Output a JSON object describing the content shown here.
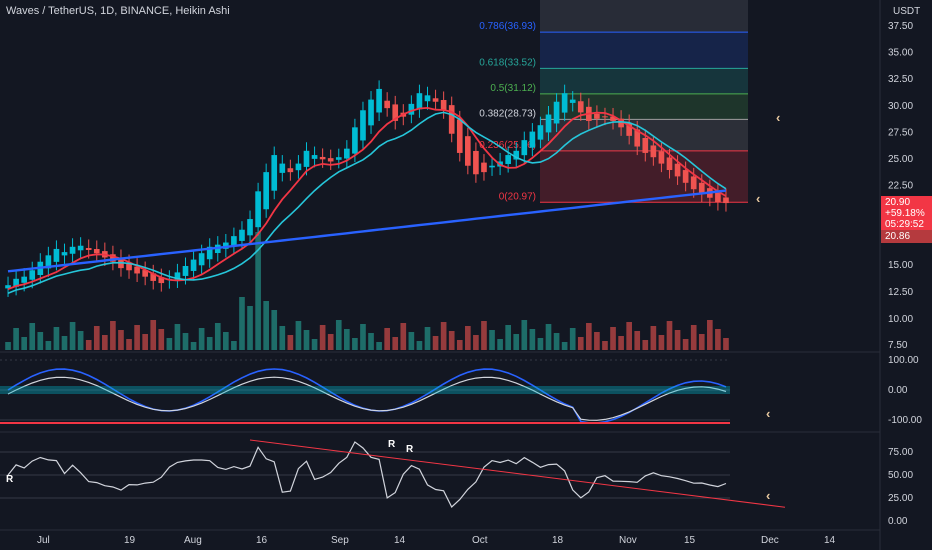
{
  "header": {
    "title": "Waves / TetherUS, 1D, BINANCE, Heikin Ashi",
    "quote_unit": "USDT"
  },
  "price_tags": {
    "last_price": "20.90",
    "change_pct": "+59.18%",
    "countdown": "05:29:52",
    "secondary": "20.86"
  },
  "colors": {
    "background": "#131722",
    "up": "#26a69a",
    "down": "#ef5350",
    "cyan": "#00bcd4",
    "blue_ma": "#2962ff",
    "red_ma": "#f23645",
    "accent_arrow": "#e8c9a0"
  },
  "chart_data": [
    {
      "type": "candlestick",
      "style": "Heikin Ashi",
      "y_axis": {
        "range": [
          6.5,
          40
        ],
        "ticks": [
          "37.50",
          "35.00",
          "32.50",
          "30.00",
          "27.50",
          "25.00",
          "22.50",
          "15.00",
          "12.50",
          "10.00",
          "7.50"
        ]
      },
      "x_axis": {
        "ticks": [
          "Jul",
          "19",
          "Aug",
          "16",
          "Sep",
          "14",
          "Oct",
          "18",
          "Nov",
          "15",
          "Dec",
          "14"
        ]
      },
      "fibonacci": [
        {
          "label": "0.786(36.93)",
          "value": 36.93,
          "color": "#2962ff"
        },
        {
          "label": "0.618(33.52)",
          "value": 33.52,
          "color": "#26a69a"
        },
        {
          "label": "0.5(31.12)",
          "value": 31.12,
          "color": "#4caf50"
        },
        {
          "label": "0.382(28.73)",
          "value": 28.73,
          "color": "#9e9e9e"
        },
        {
          "label": "0.236(25.76)",
          "value": 25.76,
          "color": "#f23645"
        },
        {
          "label": "0(20.97)",
          "value": 20.97,
          "color": "#f23645"
        }
      ],
      "close_approx": [
        13.2,
        13.8,
        14.0,
        14.6,
        15.4,
        16.0,
        16.6,
        16.3,
        16.8,
        16.9,
        16.5,
        16.2,
        15.8,
        15.4,
        14.8,
        14.6,
        14.3,
        14.0,
        13.6,
        13.4,
        13.8,
        14.4,
        15.0,
        15.6,
        16.2,
        16.8,
        17.0,
        17.2,
        17.8,
        18.4,
        19.4,
        22.0,
        23.8,
        25.4,
        24.6,
        23.8,
        24.6,
        25.8,
        25.4,
        25.0,
        24.8,
        25.2,
        26.0,
        28.0,
        29.6,
        30.6,
        31.6,
        29.8,
        28.6,
        29.0,
        30.2,
        31.2,
        31.0,
        30.4,
        29.6,
        27.4,
        25.6,
        24.4,
        23.6,
        23.8,
        24.4,
        24.8,
        25.4,
        25.8,
        26.8,
        27.6,
        28.2,
        29.2,
        30.4,
        31.2,
        30.6,
        29.4,
        28.6,
        28.8,
        29.0,
        28.6,
        28.0,
        27.2,
        26.2,
        25.6,
        25.2,
        24.6,
        24.0,
        23.4,
        22.8,
        22.2,
        21.8,
        21.4,
        21.0,
        20.9
      ]
    },
    {
      "type": "line",
      "name": "oscillator",
      "y_axis": {
        "ticks": [
          "100.00",
          "0.00",
          "-100.00"
        ]
      }
    },
    {
      "type": "line",
      "name": "RSI",
      "y_axis": {
        "ticks": [
          "75.00",
          "50.00",
          "25.00",
          "0.00"
        ]
      },
      "annotations": [
        "R",
        "R",
        "R"
      ]
    }
  ]
}
